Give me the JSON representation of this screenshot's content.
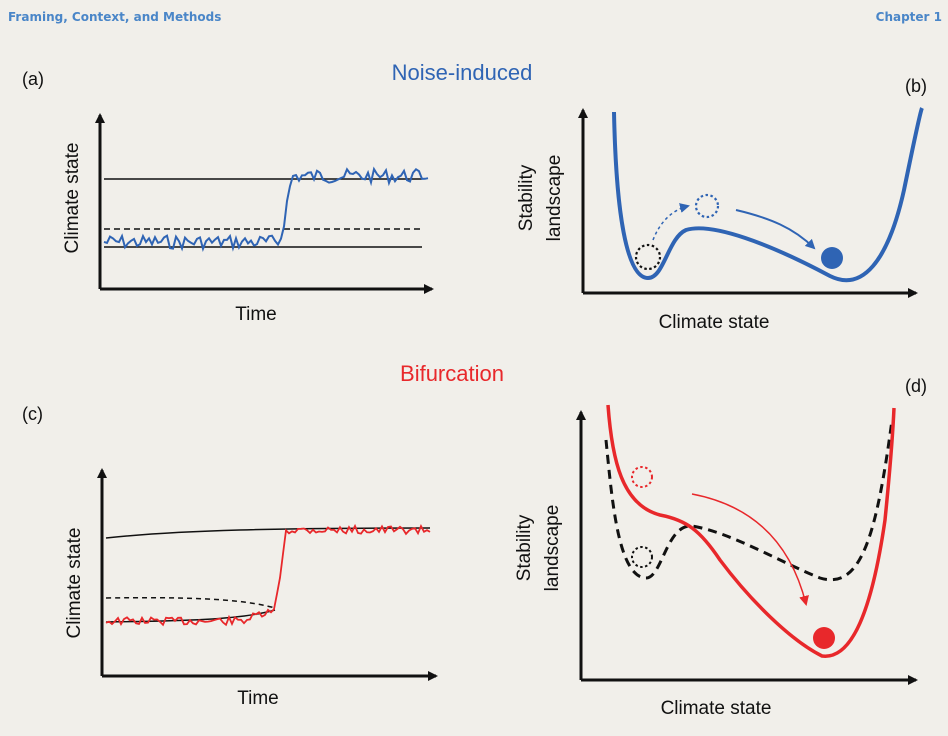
{
  "header": {
    "left": "Framing, Context, and Methods",
    "right": "Chapter 1"
  },
  "colors": {
    "noise": "#2f64b4",
    "bifurcation": "#e8282b",
    "header": "#4a86c8"
  },
  "sections": {
    "noise": {
      "title": "Noise-induced"
    },
    "bifurcation": {
      "title": "Bifurcation"
    }
  },
  "panels": {
    "a": {
      "label": "(a)",
      "ylabel": "Climate state",
      "xlabel": "Time"
    },
    "b": {
      "label": "(b)",
      "ylabel_line1": "Stability",
      "ylabel_line2": "landscape",
      "xlabel": "Climate state"
    },
    "c": {
      "label": "(c)",
      "ylabel": "Climate state",
      "xlabel": "Time"
    },
    "d": {
      "label": "(d)",
      "ylabel_line1": "Stability",
      "ylabel_line2": "landscape",
      "xlabel": "Climate state"
    }
  }
}
